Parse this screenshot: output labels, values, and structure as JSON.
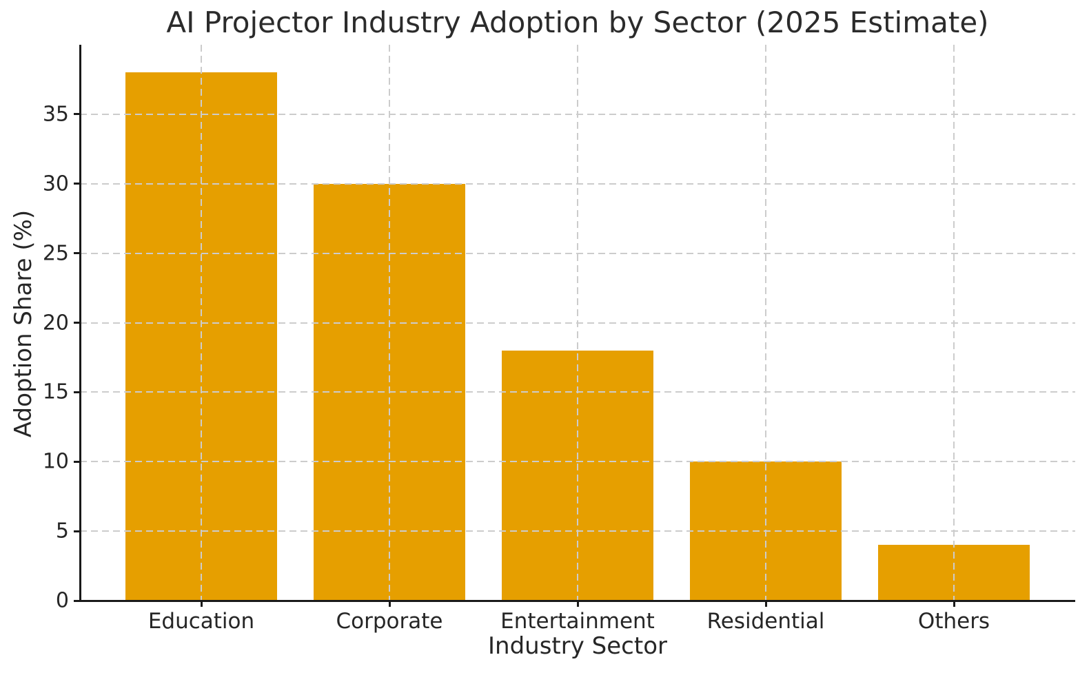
{
  "chart_data": {
    "type": "bar",
    "title": "AI Projector Industry Adoption by Sector (2025 Estimate)",
    "xlabel": "Industry Sector",
    "ylabel": "Adoption Share (%)",
    "categories": [
      "Education",
      "Corporate",
      "Entertainment",
      "Residential",
      "Others"
    ],
    "values": [
      38,
      30,
      18,
      10,
      4
    ],
    "ylim": [
      0,
      40
    ],
    "yticks": [
      0,
      5,
      10,
      15,
      20,
      25,
      30,
      35
    ],
    "bar_color": "#E69F00",
    "grid_color": "#CCCCCC",
    "axis_color": "#1A1A1A",
    "text_color": "#262626",
    "grid": "dashed, horizontal and vertical, drawn over bars",
    "legend": "none"
  }
}
